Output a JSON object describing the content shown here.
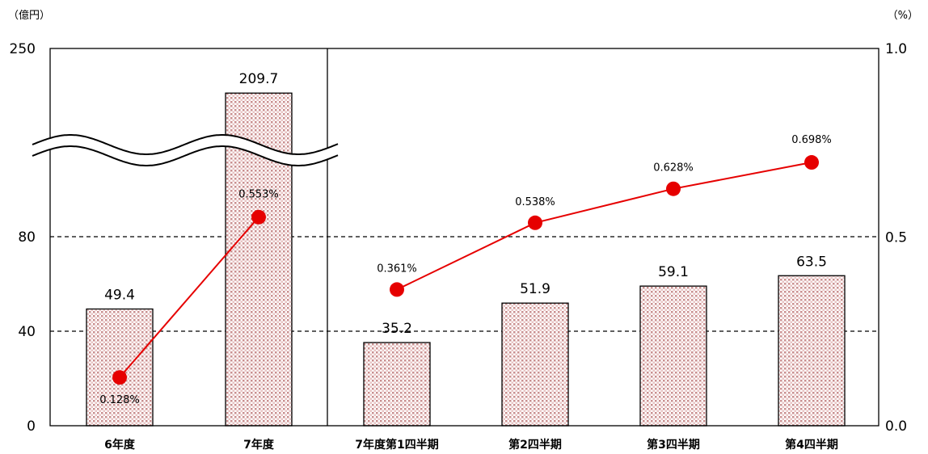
{
  "units": {
    "left": "（億円）",
    "right": "（%）"
  },
  "chart_data": {
    "type": "bar+line",
    "categories": [
      "6年度",
      "7年度",
      "7年度第1四半期",
      "第2四半期",
      "第3四半期",
      "第4四半期"
    ],
    "series": [
      {
        "type": "bar",
        "axis": "left",
        "values": [
          49.4,
          209.7,
          35.2,
          51.9,
          59.1,
          63.5
        ],
        "labels": [
          "49.4",
          "209.7",
          "35.2",
          "51.9",
          "59.1",
          "63.5"
        ]
      },
      {
        "type": "line",
        "axis": "right",
        "color": "#e60000",
        "values": [
          0.128,
          0.553,
          0.361,
          0.538,
          0.628,
          0.698
        ],
        "labels": [
          "0.128%",
          "0.553%",
          "0.361%",
          "0.538%",
          "0.628%",
          "0.698%"
        ],
        "connect_groups": [
          [
            0,
            1
          ],
          [
            2,
            3,
            4,
            5
          ]
        ]
      }
    ],
    "y_left": {
      "ticks": [
        0,
        40,
        80,
        250
      ],
      "tick_labels": [
        "0",
        "40",
        "80",
        "250"
      ],
      "axis_break": true
    },
    "y_right": {
      "range": [
        0,
        1.0
      ],
      "ticks": [
        0,
        0.5,
        1.0
      ],
      "tick_labels": [
        "0.0",
        "0.5",
        "1.0"
      ]
    },
    "gridlines": [
      40,
      80
    ],
    "bar_fill": "#d9a6a6",
    "line_color": "#e60000"
  }
}
